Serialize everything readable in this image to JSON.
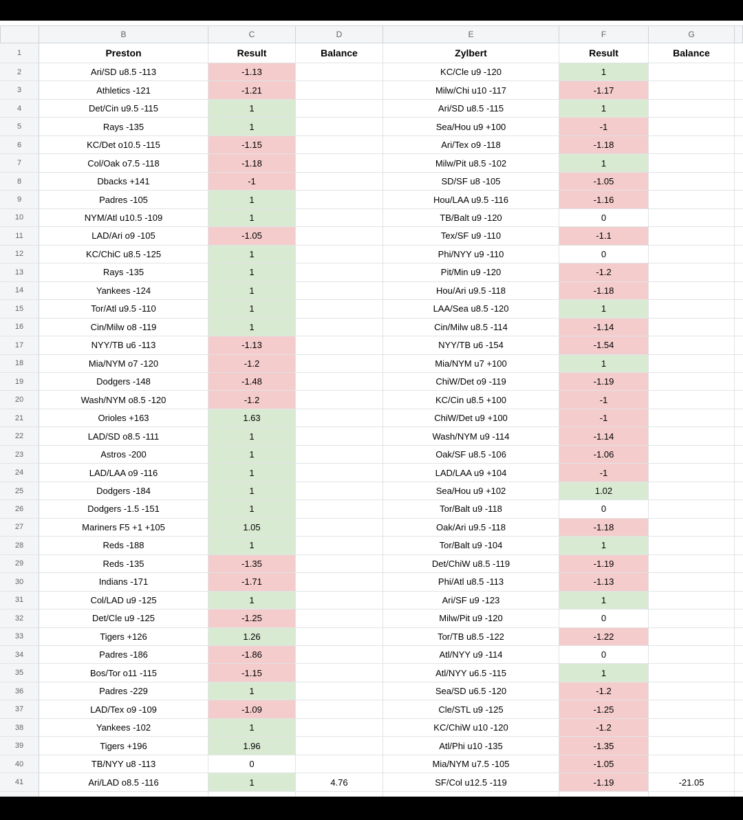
{
  "sheet": {
    "column_letters": [
      "B",
      "C",
      "D",
      "E",
      "F",
      "G"
    ],
    "header_row": {
      "n": "1",
      "b": "Preston",
      "c": "Result",
      "d": "Balance",
      "e": "Zylbert",
      "f": "Result",
      "g": "Balance"
    },
    "summary": {
      "preston_balance": "4.76",
      "zylbert_balance": "-21.05"
    }
  },
  "colors": {
    "win_bg": "#d9ead3",
    "loss_bg": "#f4cccc",
    "grid_line": "#e1e3e5",
    "header_bg": "#f4f5f6",
    "header_border": "#cfd2d6",
    "header_text": "#5f6368",
    "letterbox": "#000000"
  },
  "rows": [
    {
      "n": "2",
      "b": "Ari/SD u8.5 -113",
      "c": "-1.13",
      "d": "",
      "e": "KC/Cle u9 -120",
      "f": "1",
      "g": ""
    },
    {
      "n": "3",
      "b": "Athletics -121",
      "c": "-1.21",
      "d": "",
      "e": "Milw/Chi u10 -117",
      "f": "-1.17",
      "g": ""
    },
    {
      "n": "4",
      "b": "Det/Cin u9.5 -115",
      "c": "1",
      "d": "",
      "e": "Ari/SD u8.5 -115",
      "f": "1",
      "g": ""
    },
    {
      "n": "5",
      "b": "Rays -135",
      "c": "1",
      "d": "",
      "e": "Sea/Hou u9 +100",
      "f": "-1",
      "g": ""
    },
    {
      "n": "6",
      "b": "KC/Det o10.5 -115",
      "c": "-1.15",
      "d": "",
      "e": "Ari/Tex o9 -118",
      "f": "-1.18",
      "g": ""
    },
    {
      "n": "7",
      "b": "Col/Oak o7.5 -118",
      "c": "-1.18",
      "d": "",
      "e": "Milw/Pit u8.5 -102",
      "f": "1",
      "g": ""
    },
    {
      "n": "8",
      "b": "Dbacks +141",
      "c": "-1",
      "d": "",
      "e": "SD/SF u8 -105",
      "f": "-1.05",
      "g": ""
    },
    {
      "n": "9",
      "b": "Padres -105",
      "c": "1",
      "d": "",
      "e": "Hou/LAA u9.5 -116",
      "f": "-1.16",
      "g": ""
    },
    {
      "n": "10",
      "b": "NYM/Atl u10.5 -109",
      "c": "1",
      "d": "",
      "e": "TB/Balt u9 -120",
      "f": "0",
      "g": ""
    },
    {
      "n": "11",
      "b": "LAD/Ari o9 -105",
      "c": "-1.05",
      "d": "",
      "e": "Tex/SF u9 -110",
      "f": "-1.1",
      "g": ""
    },
    {
      "n": "12",
      "b": "KC/ChiC u8.5 -125",
      "c": "1",
      "d": "",
      "e": "Phi/NYY u9 -110",
      "f": "0",
      "g": ""
    },
    {
      "n": "13",
      "b": "Rays -135",
      "c": "1",
      "d": "",
      "e": "Pit/Min u9 -120",
      "f": "-1.2",
      "g": ""
    },
    {
      "n": "14",
      "b": "Yankees -124",
      "c": "1",
      "d": "",
      "e": "Hou/Ari u9.5 -118",
      "f": "-1.18",
      "g": ""
    },
    {
      "n": "15",
      "b": "Tor/Atl u9.5 -110",
      "c": "1",
      "d": "",
      "e": "LAA/Sea u8.5 -120",
      "f": "1",
      "g": ""
    },
    {
      "n": "16",
      "b": "Cin/Milw o8 -119",
      "c": "1",
      "d": "",
      "e": "Cin/Milw u8.5 -114",
      "f": "-1.14",
      "g": ""
    },
    {
      "n": "17",
      "b": "NYY/TB u6 -113",
      "c": "-1.13",
      "d": "",
      "e": "NYY/TB u6 -154",
      "f": "-1.54",
      "g": ""
    },
    {
      "n": "18",
      "b": "Mia/NYM o7 -120",
      "c": "-1.2",
      "d": "",
      "e": "Mia/NYM u7 +100",
      "f": "1",
      "g": ""
    },
    {
      "n": "19",
      "b": "Dodgers -148",
      "c": "-1.48",
      "d": "",
      "e": "ChiW/Det o9 -119",
      "f": "-1.19",
      "g": ""
    },
    {
      "n": "20",
      "b": "Wash/NYM o8.5 -120",
      "c": "-1.2",
      "d": "",
      "e": "KC/Cin u8.5 +100",
      "f": "-1",
      "g": ""
    },
    {
      "n": "21",
      "b": "Orioles +163",
      "c": "1.63",
      "d": "",
      "e": "ChiW/Det u9 +100",
      "f": "-1",
      "g": ""
    },
    {
      "n": "22",
      "b": "LAD/SD o8.5 -111",
      "c": "1",
      "d": "",
      "e": "Wash/NYM u9 -114",
      "f": "-1.14",
      "g": ""
    },
    {
      "n": "23",
      "b": "Astros -200",
      "c": "1",
      "d": "",
      "e": "Oak/SF u8.5 -106",
      "f": "-1.06",
      "g": ""
    },
    {
      "n": "24",
      "b": "LAD/LAA o9 -116",
      "c": "1",
      "d": "",
      "e": "LAD/LAA u9 +104",
      "f": "-1",
      "g": ""
    },
    {
      "n": "25",
      "b": "Dodgers -184",
      "c": "1",
      "d": "",
      "e": "Sea/Hou u9 +102",
      "f": "1.02",
      "g": ""
    },
    {
      "n": "26",
      "b": "Dodgers -1.5 -151",
      "c": "1",
      "d": "",
      "e": "Tor/Balt u9 -118",
      "f": "0",
      "g": ""
    },
    {
      "n": "27",
      "b": "Mariners F5 +1 +105",
      "c": "1.05",
      "d": "",
      "e": "Oak/Ari u9.5 -118",
      "f": "-1.18",
      "g": ""
    },
    {
      "n": "28",
      "b": "Reds -188",
      "c": "1",
      "d": "",
      "e": "Tor/Balt u9 -104",
      "f": "1",
      "g": ""
    },
    {
      "n": "29",
      "b": "Reds -135",
      "c": "-1.35",
      "d": "",
      "e": "Det/ChiW u8.5 -119",
      "f": "-1.19",
      "g": ""
    },
    {
      "n": "30",
      "b": "Indians -171",
      "c": "-1.71",
      "d": "",
      "e": "Phi/Atl u8.5 -113",
      "f": "-1.13",
      "g": ""
    },
    {
      "n": "31",
      "b": "Col/LAD u9 -125",
      "c": "1",
      "d": "",
      "e": "Ari/SF u9 -123",
      "f": "1",
      "g": ""
    },
    {
      "n": "32",
      "b": "Det/Cle u9 -125",
      "c": "-1.25",
      "d": "",
      "e": "Milw/Pit u9 -120",
      "f": "0",
      "g": ""
    },
    {
      "n": "33",
      "b": "Tigers +126",
      "c": "1.26",
      "d": "",
      "e": "Tor/TB u8.5 -122",
      "f": "-1.22",
      "g": ""
    },
    {
      "n": "34",
      "b": "Padres -186",
      "c": "-1.86",
      "d": "",
      "e": "Atl/NYY u9 -114",
      "f": "0",
      "g": ""
    },
    {
      "n": "35",
      "b": "Bos/Tor o11 -115",
      "c": "-1.15",
      "d": "",
      "e": "Atl/NYY u6.5 -115",
      "f": "1",
      "g": ""
    },
    {
      "n": "36",
      "b": "Padres -229",
      "c": "1",
      "d": "",
      "e": "Sea/SD u6.5 -120",
      "f": "-1.2",
      "g": ""
    },
    {
      "n": "37",
      "b": "LAD/Tex o9 -109",
      "c": "-1.09",
      "d": "",
      "e": "Cle/STL u9 -125",
      "f": "-1.25",
      "g": ""
    },
    {
      "n": "38",
      "b": "Yankees -102",
      "c": "1",
      "d": "",
      "e": "KC/ChiW u10 -120",
      "f": "-1.2",
      "g": ""
    },
    {
      "n": "39",
      "b": "Tigers +196",
      "c": "1.96",
      "d": "",
      "e": "Atl/Phi u10 -135",
      "f": "-1.35",
      "g": ""
    },
    {
      "n": "40",
      "b": "TB/NYY u8 -113",
      "c": "0",
      "d": "",
      "e": "Mia/NYM u7.5 -105",
      "f": "-1.05",
      "g": ""
    },
    {
      "n": "41",
      "b": "Ari/LAD o8.5 -116",
      "c": "1",
      "d": "4.76",
      "e": "SF/Col u12.5 -119",
      "f": "-1.19",
      "g": "-21.05"
    }
  ]
}
